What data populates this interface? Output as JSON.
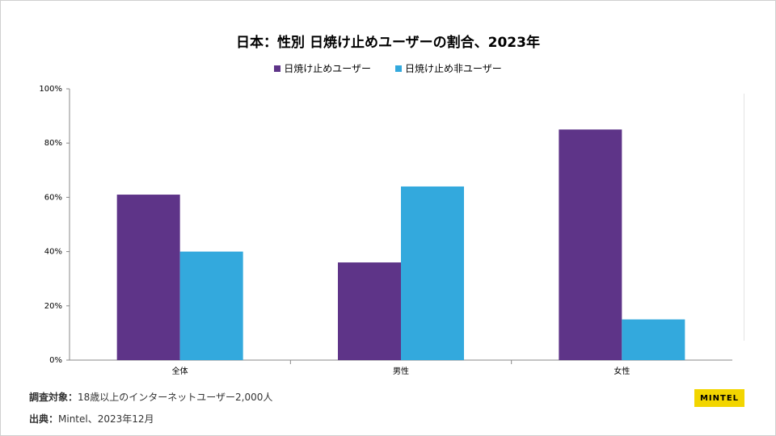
{
  "title": "日本：性別 日焼け止めユーザーの割合、2023年",
  "legend": [
    {
      "label": "日焼け止めユーザー",
      "color": "#5e3488"
    },
    {
      "label": "日焼け止め非ユーザー",
      "color": "#33a9dd"
    }
  ],
  "chart_data": {
    "type": "bar",
    "title": "日本：性別 日焼け止めユーザーの割合、2023年",
    "categories": [
      "全体",
      "男性",
      "女性"
    ],
    "series": [
      {
        "name": "日焼け止めユーザー",
        "values": [
          61,
          36,
          85
        ],
        "color": "#5e3488"
      },
      {
        "name": "日焼け止め非ユーザー",
        "values": [
          40,
          64,
          15
        ],
        "color": "#33a9dd"
      }
    ],
    "ylim": [
      0,
      100
    ],
    "yticks": [
      "0%",
      "20%",
      "40%",
      "60%",
      "80%",
      "100%"
    ],
    "ytick_values": [
      0,
      20,
      40,
      60,
      80,
      100
    ],
    "grid": false,
    "legend_position": "top-center"
  },
  "notes": {
    "survey_label": "調査対象：",
    "survey_text": "18歳以上のインターネットユーザー2,000人",
    "source_label": "出典：",
    "source_text": "Mintel、2023年12月"
  },
  "logo": "MINTEL"
}
